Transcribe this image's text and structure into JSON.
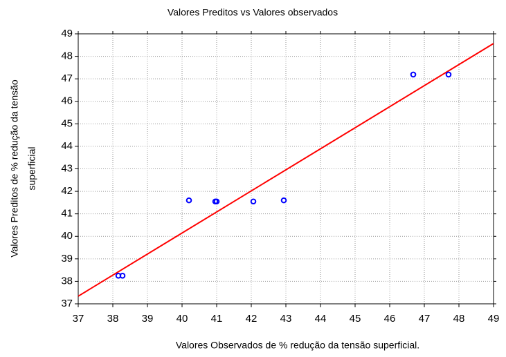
{
  "chart_data": {
    "type": "scatter",
    "title": "Valores Preditos vs Valores observados",
    "xlabel": "Valores Observados de % redução da tensão superficial.",
    "ylabel": [
      "Valores Preditos de % redução da tensão",
      "superficial"
    ],
    "series": [
      {
        "color": "#0000ff",
        "marker": "circle",
        "x": [
          38.16,
          38.28,
          40.2,
          40.96,
          41.0,
          42.06,
          42.94,
          46.68,
          47.7
        ],
        "values": [
          38.25,
          38.25,
          41.6,
          41.55,
          41.55,
          41.55,
          41.6,
          47.19,
          47.19
        ]
      },
      {
        "color": "#ff0000",
        "line": true,
        "x": [
          37,
          49
        ],
        "values": [
          37.34,
          48.57
        ]
      }
    ],
    "xlim": [
      37,
      49
    ],
    "ylim": [
      37,
      49
    ],
    "xticks": [
      37,
      38,
      39,
      40,
      41,
      42,
      43,
      44,
      45,
      46,
      47,
      48,
      49
    ],
    "yticks": [
      37,
      38,
      39,
      40,
      41,
      42,
      43,
      44,
      45,
      46,
      47,
      48,
      49
    ],
    "grid": true
  }
}
